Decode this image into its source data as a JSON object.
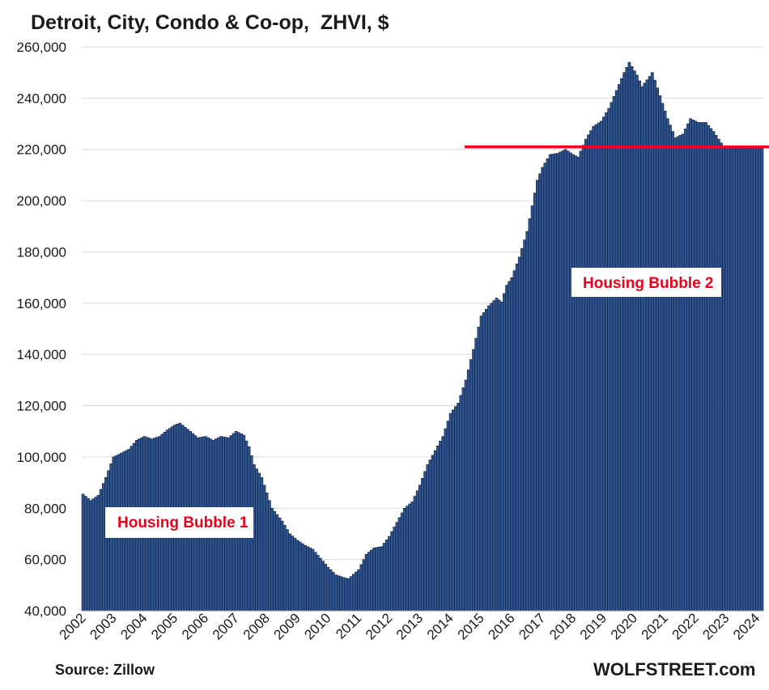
{
  "chart_data": {
    "type": "bar",
    "title": "Detroit, City, Condo & Co-op,  ZHVI, $",
    "xlabel": "",
    "ylabel": "",
    "ylim": [
      40000,
      260000
    ],
    "y_ticks": [
      "40,000",
      "60,000",
      "80,000",
      "100,000",
      "120,000",
      "140,000",
      "160,000",
      "180,000",
      "200,000",
      "220,000",
      "240,000",
      "260,000"
    ],
    "x_ticks": [
      "2002",
      "2003",
      "2004",
      "2005",
      "2006",
      "2007",
      "2008",
      "2009",
      "2010",
      "2011",
      "2012",
      "2013",
      "2014",
      "2015",
      "2016",
      "2017",
      "2018",
      "2019",
      "2020",
      "2021",
      "2022",
      "2023",
      "2024"
    ],
    "grid": true,
    "frequency": "monthly",
    "start": "2002-01",
    "end": "2024-03",
    "anchors": [
      [
        "2002-01",
        85500
      ],
      [
        "2002-04",
        83000
      ],
      [
        "2002-07",
        85000
      ],
      [
        "2002-10",
        92000
      ],
      [
        "2003-01",
        100000
      ],
      [
        "2003-04",
        101500
      ],
      [
        "2003-07",
        103000
      ],
      [
        "2003-10",
        106500
      ],
      [
        "2004-01",
        108000
      ],
      [
        "2004-04",
        107000
      ],
      [
        "2004-07",
        108000
      ],
      [
        "2004-10",
        110500
      ],
      [
        "2005-01",
        112500
      ],
      [
        "2005-03",
        113200
      ],
      [
        "2005-07",
        110000
      ],
      [
        "2005-10",
        107500
      ],
      [
        "2006-01",
        108000
      ],
      [
        "2006-04",
        106500
      ],
      [
        "2006-07",
        108000
      ],
      [
        "2006-10",
        107500
      ],
      [
        "2007-01",
        110000
      ],
      [
        "2007-04",
        108500
      ],
      [
        "2007-06",
        104000
      ],
      [
        "2007-08",
        97000
      ],
      [
        "2007-11",
        92000
      ],
      [
        "2008-03",
        80000
      ],
      [
        "2008-07",
        75000
      ],
      [
        "2008-10",
        70000
      ],
      [
        "2009-01",
        67500
      ],
      [
        "2009-04",
        65500
      ],
      [
        "2009-07",
        64000
      ],
      [
        "2009-10",
        60500
      ],
      [
        "2010-01",
        57000
      ],
      [
        "2010-04",
        54000
      ],
      [
        "2010-07",
        53000
      ],
      [
        "2010-09",
        52500
      ],
      [
        "2011-01",
        56000
      ],
      [
        "2011-04",
        62000
      ],
      [
        "2011-07",
        64500
      ],
      [
        "2011-10",
        65000
      ],
      [
        "2012-01",
        69000
      ],
      [
        "2012-04",
        74500
      ],
      [
        "2012-07",
        80000
      ],
      [
        "2012-10",
        82500
      ],
      [
        "2013-01",
        89000
      ],
      [
        "2013-04",
        97000
      ],
      [
        "2013-07",
        102500
      ],
      [
        "2013-10",
        108000
      ],
      [
        "2014-01",
        117000
      ],
      [
        "2014-04",
        121000
      ],
      [
        "2014-07",
        130000
      ],
      [
        "2014-10",
        142000
      ],
      [
        "2015-01",
        155000
      ],
      [
        "2015-04",
        159000
      ],
      [
        "2015-07",
        162000
      ],
      [
        "2015-09",
        160500
      ],
      [
        "2015-11",
        167000
      ],
      [
        "2016-01",
        170000
      ],
      [
        "2016-04",
        178000
      ],
      [
        "2016-07",
        188000
      ],
      [
        "2016-09",
        198000
      ],
      [
        "2016-11",
        208000
      ],
      [
        "2017-01",
        213000
      ],
      [
        "2017-04",
        218000
      ],
      [
        "2017-07",
        218500
      ],
      [
        "2017-10",
        220000
      ],
      [
        "2018-01",
        218000
      ],
      [
        "2018-03",
        217000
      ],
      [
        "2018-06",
        224000
      ],
      [
        "2018-09",
        229000
      ],
      [
        "2018-12",
        231000
      ],
      [
        "2019-03",
        236000
      ],
      [
        "2019-06",
        243000
      ],
      [
        "2019-09",
        250000
      ],
      [
        "2019-11",
        254000
      ],
      [
        "2020-02",
        249000
      ],
      [
        "2020-04",
        244500
      ],
      [
        "2020-07",
        248500
      ],
      [
        "2020-08",
        250000
      ],
      [
        "2020-11",
        241000
      ],
      [
        "2021-02",
        232000
      ],
      [
        "2021-05",
        224500
      ],
      [
        "2021-08",
        226000
      ],
      [
        "2021-11",
        232000
      ],
      [
        "2022-02",
        230500
      ],
      [
        "2022-05",
        230500
      ],
      [
        "2022-08",
        227000
      ],
      [
        "2022-11",
        222500
      ],
      [
        "2022-12",
        221000
      ]
    ],
    "annotations": [
      {
        "text": "Housing Bubble 1"
      },
      {
        "text": "Housing Bubble 2"
      }
    ],
    "reference_line": {
      "value": 221000,
      "from": "2014-07",
      "to": "2024-03",
      "color": "#e8001c"
    },
    "bar_color": "#2e5590"
  },
  "footer": {
    "source": "Source: Zillow",
    "brand": "WOLFSTREET.com"
  }
}
